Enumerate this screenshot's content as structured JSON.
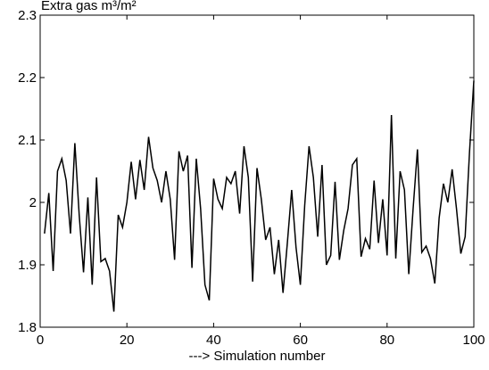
{
  "chart_data": {
    "type": "line",
    "title": "Extra gas m³/m²",
    "x_label": "---> Simulation number",
    "x": [
      1,
      2,
      3,
      4,
      5,
      6,
      7,
      8,
      9,
      10,
      11,
      12,
      13,
      14,
      15,
      16,
      17,
      18,
      19,
      20,
      21,
      22,
      23,
      24,
      25,
      26,
      27,
      28,
      29,
      30,
      31,
      32,
      33,
      34,
      35,
      36,
      37,
      38,
      39,
      40,
      41,
      42,
      43,
      44,
      45,
      46,
      47,
      48,
      49,
      50,
      51,
      52,
      53,
      54,
      55,
      56,
      57,
      58,
      59,
      60,
      61,
      62,
      63,
      64,
      65,
      66,
      67,
      68,
      69,
      70,
      71,
      72,
      73,
      74,
      75,
      76,
      77,
      78,
      79,
      80,
      81,
      82,
      83,
      84,
      85,
      86,
      87,
      88,
      89,
      90,
      91,
      92,
      93,
      94,
      95,
      96,
      97,
      98,
      99,
      100
    ],
    "values": [
      1.95,
      2.015,
      1.89,
      2.05,
      2.07,
      2.035,
      1.95,
      2.095,
      1.98,
      1.888,
      2.008,
      1.868,
      2.04,
      1.905,
      1.91,
      1.89,
      1.825,
      1.98,
      1.96,
      2.0,
      2.065,
      2.005,
      2.068,
      2.02,
      2.105,
      2.055,
      2.035,
      2.0,
      2.05,
      2.005,
      1.908,
      2.082,
      2.05,
      2.075,
      1.895,
      2.07,
      1.99,
      1.868,
      1.843,
      2.038,
      2.005,
      1.99,
      2.04,
      2.03,
      2.05,
      1.982,
      2.09,
      2.04,
      1.873,
      2.055,
      2.005,
      1.94,
      1.96,
      1.885,
      1.94,
      1.855,
      1.935,
      2.02,
      1.928,
      1.868,
      1.995,
      2.09,
      2.04,
      1.945,
      2.06,
      1.9,
      1.915,
      2.033,
      1.908,
      1.955,
      1.99,
      2.06,
      2.07,
      1.913,
      1.942,
      1.925,
      2.035,
      1.935,
      2.005,
      1.915,
      2.14,
      1.91,
      2.05,
      2.02,
      1.885,
      1.99,
      2.085,
      1.92,
      1.93,
      1.91,
      1.87,
      1.975,
      2.03,
      2.0,
      2.053,
      1.99,
      1.918,
      1.945,
      2.08,
      2.195
    ],
    "color": "#000000",
    "xlim": [
      0,
      100
    ],
    "xticks": [
      0,
      20,
      40,
      60,
      80,
      100
    ],
    "ylim": [
      1.8,
      2.3
    ],
    "yticks": [
      1.8,
      1.9,
      2,
      2.1,
      2.2,
      2.3
    ]
  }
}
